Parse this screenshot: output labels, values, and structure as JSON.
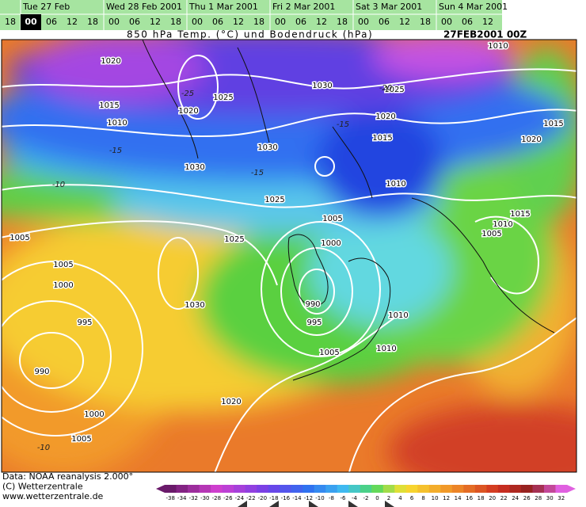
{
  "timeline": {
    "days": [
      "Tue 27 Feb",
      "Wed 28 Feb 2001",
      "Thu 1 Mar 2001",
      "Fri 2 Mar 2001",
      "Sat 3 Mar 2001",
      "Sun 4 Mar 2001"
    ],
    "hours": [
      "18",
      "00",
      "06",
      "12",
      "18",
      "00",
      "06",
      "12",
      "18",
      "00",
      "06",
      "12",
      "18",
      "00",
      "06",
      "12",
      "18",
      "00",
      "06",
      "12",
      "18",
      "00",
      "06",
      "12"
    ]
  },
  "map": {
    "title": "850 hPa Temp. (°C) und Bodendruck (hPa)",
    "run": "27FEB2001 00Z",
    "isobar_labels": [
      "1020",
      "1015",
      "1010",
      "1020",
      "1025",
      "1030",
      "1025",
      "1020",
      "1015",
      "1030",
      "1030",
      "1025",
      "1010",
      "1005",
      "1025",
      "1000",
      "1005",
      "1005",
      "1000",
      "995",
      "990",
      "1000",
      "1005",
      "1030",
      "990",
      "995",
      "1005",
      "1010",
      "1010",
      "1020",
      "1010",
      "1015",
      "1020",
      "1015",
      "1010",
      "1005"
    ],
    "temp_labels": [
      "-25",
      "-20",
      "-15",
      "-15",
      "-10",
      "-15",
      "-10"
    ]
  },
  "footer": {
    "lines": [
      "Data: NOAA reanalysis 2.000°",
      "(C) Wetterzentrale",
      "www.wetterzentrale.de"
    ]
  },
  "color_scale": {
    "labels": [
      "-38",
      "-34",
      "-32",
      "-30",
      "-28",
      "-26",
      "-24",
      "-22",
      "-20",
      "-18",
      "-16",
      "-14",
      "-12",
      "-10",
      "-8",
      "-6",
      "-4",
      "-2",
      "0",
      "2",
      "4",
      "6",
      "8",
      "10",
      "12",
      "14",
      "16",
      "18",
      "20",
      "22",
      "24",
      "26",
      "28",
      "30",
      "32"
    ]
  }
}
